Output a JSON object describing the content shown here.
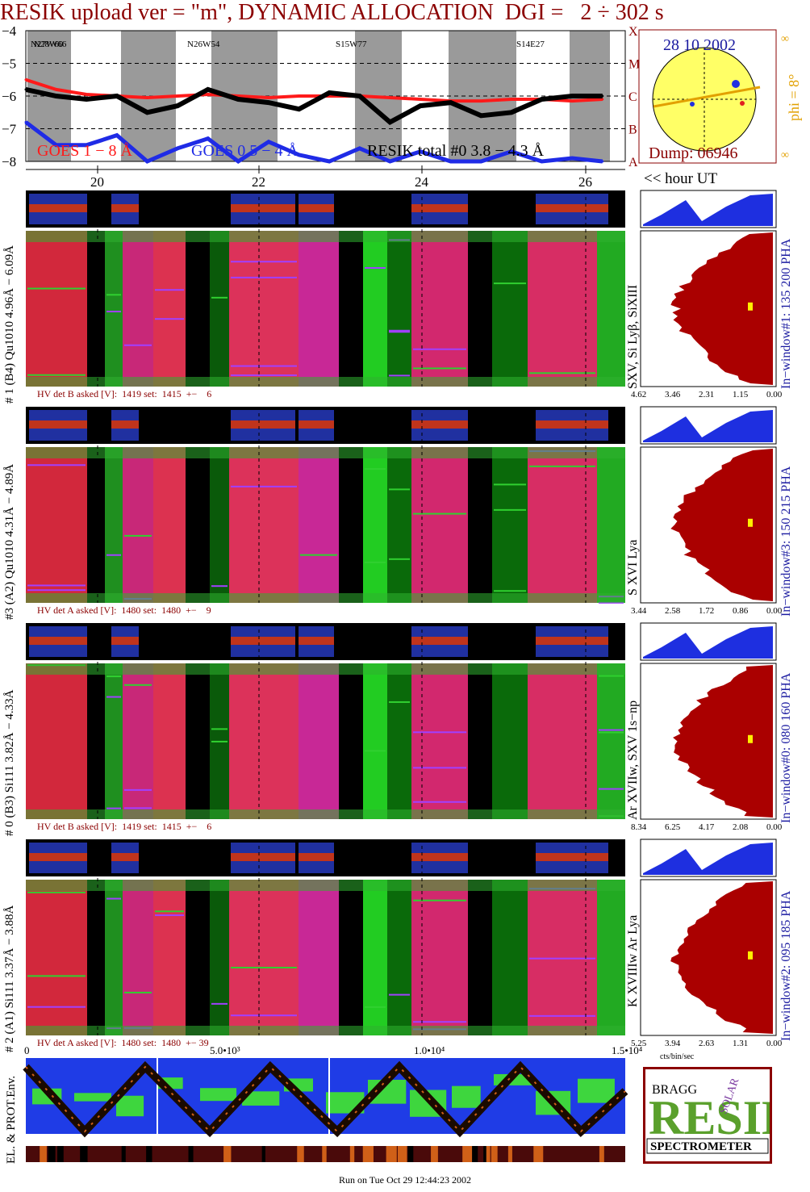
{
  "title": "RESIK upload ver = \"m\", DYNAMIC ALLOCATION  DGI =   2 ÷ 302 s",
  "goes": {
    "y_ticks": [
      "−4",
      "−5",
      "−6",
      "−7",
      "−8"
    ],
    "class_ticks": [
      "X",
      "M",
      "C",
      "B",
      "A"
    ],
    "legend_goes18": "GOES 1 − 8 Å",
    "legend_goes054": "GOES 0.5 − 4 Å",
    "legend_resik": "RESIK total #0  3.8 − 4.3 Å",
    "regions": [
      "N27W60",
      "N28W66",
      "N26W54",
      "S15W77",
      "S14E27"
    ],
    "colors": {
      "goes18": "#ff1a1a",
      "goes054": "#1f2be6",
      "resik": "#000000",
      "shade": "#9a9a9a",
      "axis": "#8b0000"
    }
  },
  "sun": {
    "date": "28 10 2002",
    "phi": "phi =   8°",
    "dump": "Dump: 06946",
    "inf": "∞",
    "colors": {
      "disk": "#ffff66",
      "border": "#8b0000",
      "arrow": "#e2a000"
    }
  },
  "hour_axis": {
    "ticks": [
      "20",
      "22",
      "24",
      "26"
    ],
    "label": "<< hour UT"
  },
  "channels": [
    {
      "left_label": "# 1 (B4) Qu1010 4.96Å − 6.09Å",
      "line_label": "SXV,  Si Lyβ, SiXIII",
      "window_label": "In−window#1:  135 200 PHA",
      "hv_text": "HV det B asked [V]:  1419 set:  1415  +−    6",
      "scale_ticks": [
        "4.62",
        "3.46",
        "2.31",
        "1.15",
        "0.00"
      ]
    },
    {
      "left_label": "#3 (A2) Qu1010  4.31Å − 4.89Å",
      "line_label": "S  XVI Lya",
      "window_label": "In−window#3:  150 215 PHA",
      "hv_text": "HV det A asked [V]:  1480 set:  1480  +−    9",
      "scale_ticks": [
        "3.44",
        "2.58",
        "1.72",
        "0.86",
        "0.00"
      ]
    },
    {
      "left_label": "# 0 (B3) Si111  3.82Å − 4.33Å",
      "line_label": "Ar XVIIw,  SXV 1s−np",
      "window_label": "In−window#0:  080 160 PHA",
      "hv_text": "HV det B asked [V]:  1419 set:  1415  +−    6",
      "scale_ticks": [
        "8.34",
        "6.25",
        "4.17",
        "2.08",
        "0.00"
      ]
    },
    {
      "left_label": "# 2 (A1) Si111  3.37Å − 3.88Å",
      "line_label": "K XVIIIw  Ar Lya",
      "window_label": "In−window#2:  095 185 PHA",
      "hv_text": "HV det A asked [V]:  1480 set:  1480  +− 39",
      "scale_ticks": [
        "5.25",
        "3.94",
        "2.63",
        "1.31",
        "0.00"
      ],
      "scale_unit": "cts/bin/sec"
    }
  ],
  "x_axis_bottom": {
    "ticks": [
      "0",
      "5.0•10³",
      "1.0•10⁴",
      "1.5•10⁴"
    ]
  },
  "env_label": "EL. & PROT.Env.",
  "logo": {
    "word": "RESIK",
    "sub": "SPECTROMETER",
    "bragg": "BRAGG",
    "solar": "SOLAR"
  },
  "footer": "Run on Tue Oct 29 12:44:23 2002",
  "chart_data": {
    "type": "line",
    "title": "RESIK upload ver = \"m\", DYNAMIC ALLOCATION  DGI =   2 ÷ 302 s",
    "xlabel": "hour UT",
    "ylabel": "",
    "xlim": [
      18.8,
      26.7
    ],
    "ylim": [
      -8,
      -4
    ],
    "series": [
      {
        "name": "GOES 1 − 8 Å",
        "x": [
          18.8,
          19.2,
          19.6,
          20.0,
          20.4,
          20.8,
          21.2,
          21.6,
          22.0,
          22.4,
          22.8,
          23.2,
          23.6,
          24.0,
          24.4,
          24.8,
          25.2,
          25.6,
          26.0,
          26.4
        ],
        "values": [
          -5.5,
          -5.8,
          -5.95,
          -6.0,
          -6.05,
          -6.0,
          -5.95,
          -6.0,
          -6.05,
          -6.0,
          -6.0,
          -6.0,
          -6.05,
          -6.1,
          -6.15,
          -6.15,
          -6.1,
          -6.1,
          -6.15,
          -6.1
        ]
      },
      {
        "name": "GOES 0.5 − 4 Å",
        "x": [
          18.8,
          19.2,
          19.6,
          20.0,
          20.4,
          20.8,
          21.2,
          21.6,
          22.0,
          22.4,
          22.8,
          23.2,
          23.6,
          24.0,
          24.4,
          24.8,
          25.2,
          25.6,
          26.0,
          26.4
        ],
        "values": [
          -6.8,
          -7.5,
          -7.5,
          -7.2,
          -8.0,
          -7.6,
          -7.3,
          -8.0,
          -7.4,
          -7.8,
          -8.0,
          -7.6,
          -8.0,
          -7.7,
          -8.0,
          -8.0,
          -7.7,
          -8.0,
          -7.9,
          -8.0
        ]
      },
      {
        "name": "RESIK total #0  3.8 − 4.3 Å",
        "x": [
          18.8,
          19.2,
          19.6,
          20.0,
          20.4,
          20.8,
          21.2,
          21.6,
          22.0,
          22.4,
          22.8,
          23.2,
          23.6,
          24.0,
          24.4,
          24.8,
          25.2,
          25.6,
          26.0,
          26.4
        ],
        "values": [
          -5.8,
          -6.0,
          -6.1,
          -6.0,
          -6.5,
          -6.3,
          -5.8,
          -6.1,
          -6.2,
          -6.4,
          -5.9,
          -6.0,
          -6.8,
          -6.3,
          -6.2,
          -6.6,
          -6.5,
          -6.1,
          -6.0,
          -6.0
        ]
      }
    ]
  }
}
